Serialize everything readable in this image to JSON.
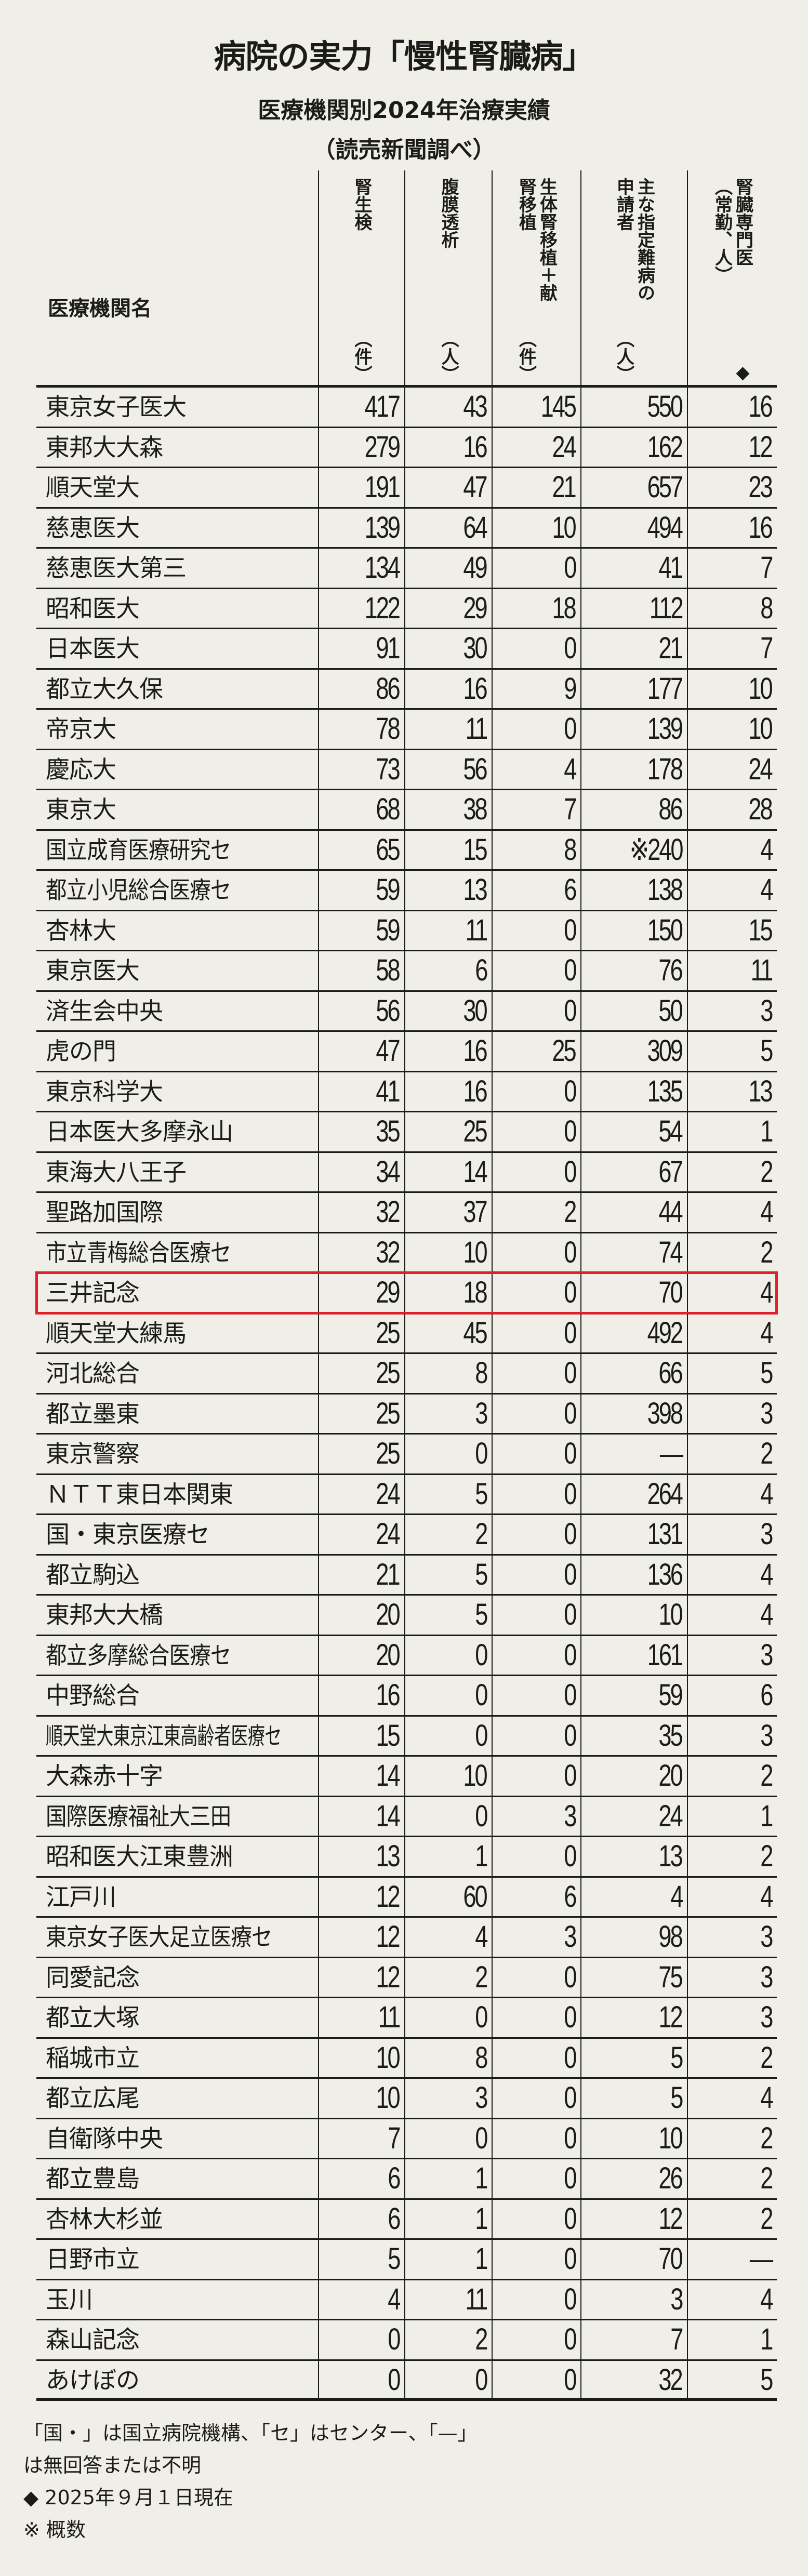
{
  "title": "病院の実力「慢性腎臓病」",
  "subtitle": "医療機関別2024年治療実績",
  "source": "（読売新聞調べ）",
  "highlight_color": "#e01f2a",
  "highlighted_row": "三井記念",
  "table": {
    "columns": [
      {
        "lines": [
          "医療機関名"
        ]
      },
      {
        "lines": [
          [
            "腎生検",
            "（件）"
          ]
        ]
      },
      {
        "lines": [
          [
            "腹膜透析",
            "（人）"
          ]
        ]
      },
      {
        "lines": [
          [
            "生体腎移植＋献",
            ""
          ],
          [
            "腎移植",
            "（件）"
          ]
        ]
      },
      {
        "lines": [
          [
            "主な指定難病の",
            ""
          ],
          [
            "申請者",
            "（人）"
          ]
        ]
      },
      {
        "lines": [
          [
            "腎臓専門医",
            "◆"
          ],
          [
            "（常勤、人）",
            ""
          ]
        ]
      }
    ],
    "rows": [
      [
        "東京女子医大",
        "417",
        "43",
        "145",
        "550",
        "16"
      ],
      [
        "東邦大大森",
        "279",
        "16",
        "24",
        "162",
        "12"
      ],
      [
        "順天堂大",
        "191",
        "47",
        "21",
        "657",
        "23"
      ],
      [
        "慈恵医大",
        "139",
        "64",
        "10",
        "494",
        "16"
      ],
      [
        "慈恵医大第三",
        "134",
        "49",
        "0",
        "41",
        "7"
      ],
      [
        "昭和医大",
        "122",
        "29",
        "18",
        "112",
        "8"
      ],
      [
        "日本医大",
        "91",
        "30",
        "0",
        "21",
        "7"
      ],
      [
        "都立大久保",
        "86",
        "16",
        "9",
        "177",
        "10"
      ],
      [
        "帝京大",
        "78",
        "11",
        "0",
        "139",
        "10"
      ],
      [
        "慶応大",
        "73",
        "56",
        "4",
        "178",
        "24"
      ],
      [
        "東京大",
        "68",
        "38",
        "7",
        "86",
        "28"
      ],
      [
        "国立成育医療研究セ",
        "65",
        "15",
        "8",
        "※240",
        "4"
      ],
      [
        "都立小児総合医療セ",
        "59",
        "13",
        "6",
        "138",
        "4"
      ],
      [
        "杏林大",
        "59",
        "11",
        "0",
        "150",
        "15"
      ],
      [
        "東京医大",
        "58",
        "6",
        "0",
        "76",
        "11"
      ],
      [
        "済生会中央",
        "56",
        "30",
        "0",
        "50",
        "3"
      ],
      [
        "虎の門",
        "47",
        "16",
        "25",
        "309",
        "5"
      ],
      [
        "東京科学大",
        "41",
        "16",
        "0",
        "135",
        "13"
      ],
      [
        "日本医大多摩永山",
        "35",
        "25",
        "0",
        "54",
        "1"
      ],
      [
        "東海大八王子",
        "34",
        "14",
        "0",
        "67",
        "2"
      ],
      [
        "聖路加国際",
        "32",
        "37",
        "2",
        "44",
        "4"
      ],
      [
        "市立青梅総合医療セ",
        "32",
        "10",
        "0",
        "74",
        "2"
      ],
      [
        "三井記念",
        "29",
        "18",
        "0",
        "70",
        "4"
      ],
      [
        "順天堂大練馬",
        "25",
        "45",
        "0",
        "492",
        "4"
      ],
      [
        "河北総合",
        "25",
        "8",
        "0",
        "66",
        "5"
      ],
      [
        "都立墨東",
        "25",
        "3",
        "0",
        "398",
        "3"
      ],
      [
        "東京警察",
        "25",
        "0",
        "0",
        "—",
        "2"
      ],
      [
        "ＮＴＴ東日本関東",
        "24",
        "5",
        "0",
        "264",
        "4"
      ],
      [
        "国・東京医療セ",
        "24",
        "2",
        "0",
        "131",
        "3"
      ],
      [
        "都立駒込",
        "21",
        "5",
        "0",
        "136",
        "4"
      ],
      [
        "東邦大大橋",
        "20",
        "5",
        "0",
        "10",
        "4"
      ],
      [
        "都立多摩総合医療セ",
        "20",
        "0",
        "0",
        "161",
        "3"
      ],
      [
        "中野総合",
        "16",
        "0",
        "0",
        "59",
        "6"
      ],
      [
        "順天堂大東京江東高齢者医療セ",
        "15",
        "0",
        "0",
        "35",
        "3"
      ],
      [
        "大森赤十字",
        "14",
        "10",
        "0",
        "20",
        "2"
      ],
      [
        "国際医療福祉大三田",
        "14",
        "0",
        "3",
        "24",
        "1"
      ],
      [
        "昭和医大江東豊洲",
        "13",
        "1",
        "0",
        "13",
        "2"
      ],
      [
        "江戸川",
        "12",
        "60",
        "6",
        "4",
        "4"
      ],
      [
        "東京女子医大足立医療セ",
        "12",
        "4",
        "3",
        "98",
        "3"
      ],
      [
        "同愛記念",
        "12",
        "2",
        "0",
        "75",
        "3"
      ],
      [
        "都立大塚",
        "11",
        "0",
        "0",
        "12",
        "3"
      ],
      [
        "稲城市立",
        "10",
        "8",
        "0",
        "5",
        "2"
      ],
      [
        "都立広尾",
        "10",
        "3",
        "0",
        "5",
        "4"
      ],
      [
        "自衛隊中央",
        "7",
        "0",
        "0",
        "10",
        "2"
      ],
      [
        "都立豊島",
        "6",
        "1",
        "0",
        "26",
        "2"
      ],
      [
        "杏林大杉並",
        "6",
        "1",
        "0",
        "12",
        "2"
      ],
      [
        "日野市立",
        "5",
        "1",
        "0",
        "70",
        "—"
      ],
      [
        "玉川",
        "4",
        "11",
        "0",
        "3",
        "4"
      ],
      [
        "森山記念",
        "0",
        "2",
        "0",
        "7",
        "1"
      ],
      [
        "あけぼの",
        "0",
        "0",
        "0",
        "32",
        "5"
      ]
    ]
  },
  "notes": [
    "「国・」は国立病院機構、「セ」はセンター、「—」",
    "は無回答または不明",
    "◆ 2025年９月１日現在",
    "※ 概数"
  ]
}
